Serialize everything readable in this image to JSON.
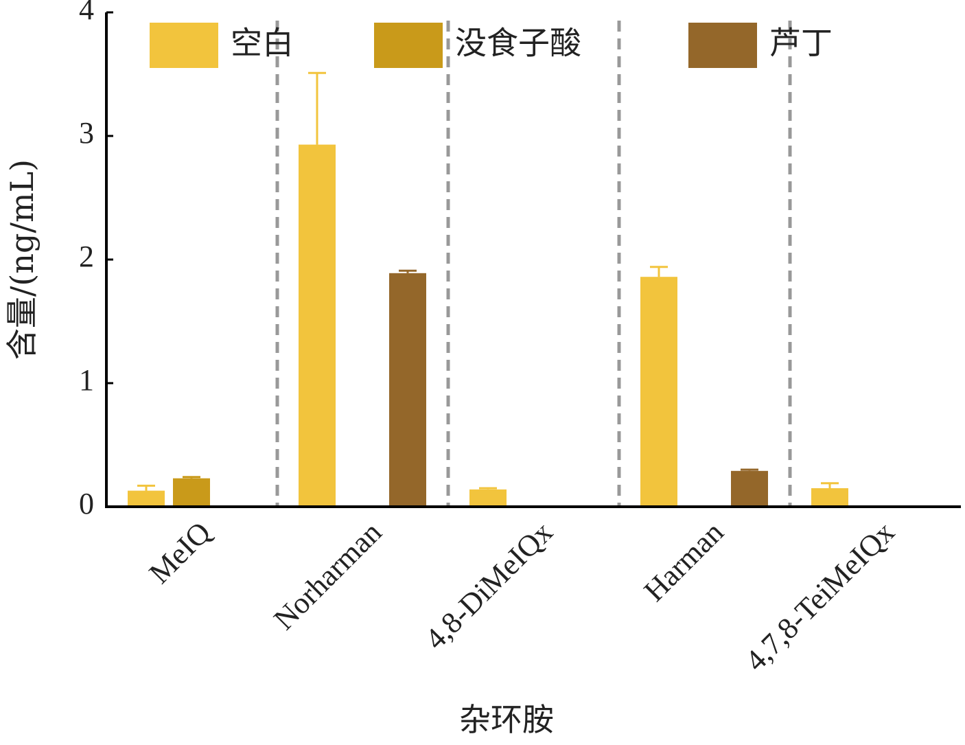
{
  "chart_data": {
    "type": "bar",
    "x_label": "杂环胺",
    "y_label": "含量/(ng/mL)",
    "categories": [
      "MeIQ",
      "Norharman",
      "4,8-DiMeIQx",
      "Harman",
      "4,7,8-TeiMeIQx"
    ],
    "series": [
      {
        "name": "空白",
        "color": "#f2c43d",
        "values": [
          0.13,
          2.93,
          0.14,
          1.86,
          0.15
        ],
        "errors": [
          0.04,
          0.58,
          0.01,
          0.08,
          0.04
        ]
      },
      {
        "name": "没食子酸",
        "color": "#c99a1a",
        "values": [
          0.23,
          0,
          0,
          0,
          0
        ],
        "errors": [
          0.01,
          0,
          0,
          0,
          0
        ]
      },
      {
        "name": "芦丁",
        "color": "#94672a",
        "values": [
          0,
          1.89,
          0,
          0.29,
          0
        ],
        "errors": [
          0,
          0.02,
          0,
          0.01,
          0
        ]
      }
    ],
    "ylim": [
      0,
      4
    ],
    "yticks": [
      0,
      1,
      2,
      3,
      4
    ]
  }
}
